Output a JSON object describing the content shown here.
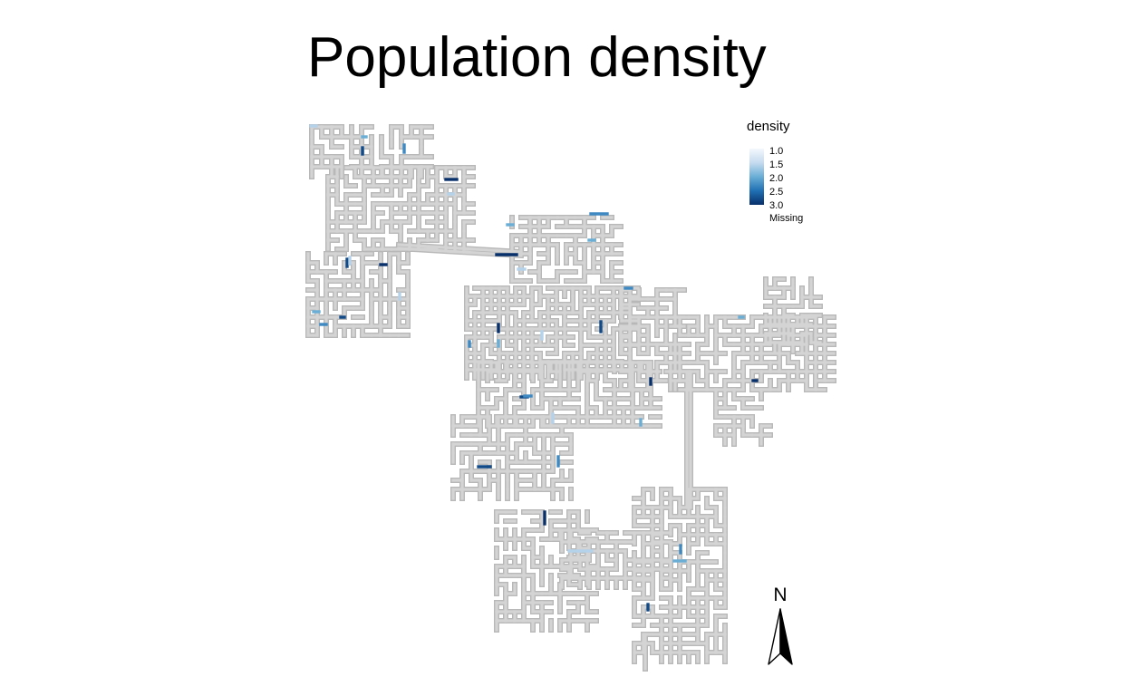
{
  "title": "Population density",
  "legend": {
    "title": "density",
    "ticks": [
      "1.0",
      "1.5",
      "2.0",
      "2.5",
      "3.0"
    ],
    "missing_label": "Missing",
    "scale_min": 1.0,
    "scale_max": 3.0,
    "missing_color": "#d3d3d3",
    "gradient_colors": [
      "#f3f8fd",
      "#c6dbef",
      "#6aaed6",
      "#2070b4",
      "#08306b"
    ]
  },
  "north_arrow": {
    "label": "N"
  },
  "map": {
    "road_color": "#d4d4d4",
    "road_edge_color": "#b8b8b8",
    "highlight_values": [
      1.6,
      2.0,
      2.3,
      2.8,
      3.0
    ]
  }
}
